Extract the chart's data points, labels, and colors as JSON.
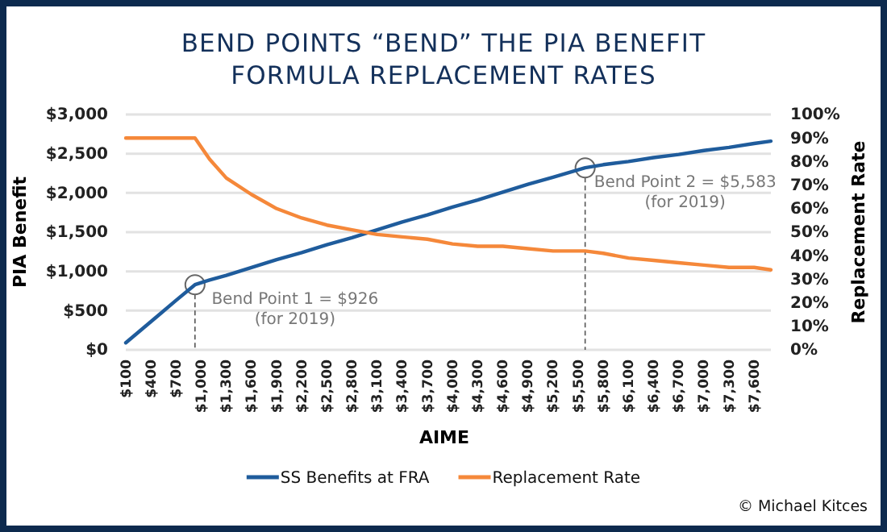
{
  "chart_data": {
    "type": "line",
    "title": "BEND POINTS “BEND” THE PIA BENEFIT\nFORMULA REPLACEMENT RATES",
    "xlabel": "AIME",
    "ylabel": "PIA Benefit",
    "y2label": "Replacement Rate",
    "x": [
      100,
      300,
      500,
      700,
      926,
      1100,
      1300,
      1600,
      1900,
      2200,
      2500,
      2800,
      3100,
      3400,
      3700,
      4000,
      4300,
      4600,
      4900,
      5200,
      5583,
      5800,
      6100,
      6400,
      6700,
      7000,
      7300,
      7600,
      7800
    ],
    "series": [
      {
        "name": "SS Benefits at FRA",
        "color": "#1f5c9c",
        "values": [
          90,
          270,
          450,
          630,
          830,
          890,
          950,
          1050,
          1150,
          1240,
          1340,
          1430,
          1530,
          1630,
          1720,
          1820,
          1910,
          2010,
          2110,
          2200,
          2320,
          2360,
          2400,
          2450,
          2490,
          2540,
          2580,
          2630,
          2660
        ]
      },
      {
        "name": "Replacement Rate",
        "color": "#f5883a",
        "axis": "y2",
        "values": [
          90,
          90,
          90,
          90,
          90,
          81,
          73,
          66,
          60,
          56,
          53,
          51,
          49,
          48,
          47,
          45,
          44,
          44,
          43,
          42,
          42,
          41,
          39,
          38,
          37,
          36,
          35,
          35,
          34
        ]
      }
    ],
    "xlim": [
      100,
      7800
    ],
    "xticks": [
      {
        "value": 100,
        "label": "$100"
      },
      {
        "value": 400,
        "label": "$400"
      },
      {
        "value": 700,
        "label": "$700"
      },
      {
        "value": 1000,
        "label": "$1,000"
      },
      {
        "value": 1300,
        "label": "$1,300"
      },
      {
        "value": 1600,
        "label": "$1,600"
      },
      {
        "value": 1900,
        "label": "$1,900"
      },
      {
        "value": 2200,
        "label": "$2,200"
      },
      {
        "value": 2500,
        "label": "$2,500"
      },
      {
        "value": 2800,
        "label": "$2,800"
      },
      {
        "value": 3100,
        "label": "$3,100"
      },
      {
        "value": 3400,
        "label": "$3,400"
      },
      {
        "value": 3700,
        "label": "$3,700"
      },
      {
        "value": 4000,
        "label": "$4,000"
      },
      {
        "value": 4300,
        "label": "$4,300"
      },
      {
        "value": 4600,
        "label": "$4,600"
      },
      {
        "value": 4900,
        "label": "$4,900"
      },
      {
        "value": 5200,
        "label": "$5,200"
      },
      {
        "value": 5500,
        "label": "$5,500"
      },
      {
        "value": 5800,
        "label": "$5,800"
      },
      {
        "value": 6100,
        "label": "$6,100"
      },
      {
        "value": 6400,
        "label": "$6,400"
      },
      {
        "value": 6700,
        "label": "$6,700"
      },
      {
        "value": 7000,
        "label": "$7,000"
      },
      {
        "value": 7300,
        "label": "$7,300"
      },
      {
        "value": 7600,
        "label": "$7,600"
      }
    ],
    "ylim": [
      0,
      3000
    ],
    "yticks": [
      {
        "value": 0,
        "label": "$0"
      },
      {
        "value": 500,
        "label": "$500"
      },
      {
        "value": 1000,
        "label": "$1,000"
      },
      {
        "value": 1500,
        "label": "$1,500"
      },
      {
        "value": 2000,
        "label": "$2,000"
      },
      {
        "value": 2500,
        "label": "$2,500"
      },
      {
        "value": 3000,
        "label": "$3,000"
      }
    ],
    "y2lim": [
      0,
      100
    ],
    "y2ticks": [
      {
        "value": 0,
        "label": "0%"
      },
      {
        "value": 10,
        "label": "10%"
      },
      {
        "value": 20,
        "label": "20%"
      },
      {
        "value": 30,
        "label": "30%"
      },
      {
        "value": 40,
        "label": "40%"
      },
      {
        "value": 50,
        "label": "50%"
      },
      {
        "value": 60,
        "label": "60%"
      },
      {
        "value": 70,
        "label": "70%"
      },
      {
        "value": 80,
        "label": "80%"
      },
      {
        "value": 90,
        "label": "90%"
      },
      {
        "value": 100,
        "label": "100%"
      }
    ],
    "grid": "y",
    "legend": "bottom",
    "marker": "none",
    "line_style": "solid",
    "annotations": [
      {
        "text": "Bend Point 1 = $926\n(for 2019)",
        "x": 926,
        "y": 830
      },
      {
        "text": "Bend Point 2 = $5,583\n(for 2019)",
        "x": 5583,
        "y": 2320
      },
      "© Michael Kitces"
    ]
  }
}
